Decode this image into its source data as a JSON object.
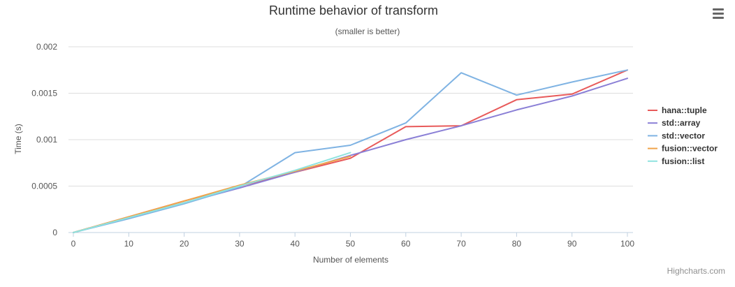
{
  "chart_data": {
    "type": "line",
    "title": "Runtime behavior of transform",
    "subtitle": "(smaller is better)",
    "xlabel": "Number of elements",
    "ylabel": "Time (s)",
    "xlim": [
      0,
      100
    ],
    "ylim": [
      0,
      0.002
    ],
    "x_ticks": [
      0,
      10,
      20,
      30,
      40,
      50,
      60,
      70,
      80,
      90,
      100
    ],
    "y_ticks": [
      {
        "value": 0,
        "label": "0"
      },
      {
        "value": 0.0005,
        "label": "0.0005"
      },
      {
        "value": 0.001,
        "label": "0.001"
      },
      {
        "value": 0.0015,
        "label": "0.0015"
      },
      {
        "value": 0.002,
        "label": "0.002"
      }
    ],
    "grid": true,
    "legend_position": "right",
    "series": [
      {
        "name": "hana::tuple",
        "color": "#e85a5a",
        "points": [
          [
            0,
            0
          ],
          [
            10,
            0.00017
          ],
          [
            20,
            0.00034
          ],
          [
            30,
            0.0005
          ],
          [
            40,
            0.00065
          ],
          [
            50,
            0.0008
          ],
          [
            60,
            0.00114
          ],
          [
            70,
            0.00115
          ],
          [
            80,
            0.00143
          ],
          [
            90,
            0.00149
          ],
          [
            100,
            0.00175
          ]
        ]
      },
      {
        "name": "std::array",
        "color": "#8a7fd6",
        "points": [
          [
            0,
            0
          ],
          [
            10,
            0.00016
          ],
          [
            20,
            0.00032
          ],
          [
            30,
            0.00048
          ],
          [
            40,
            0.00065
          ],
          [
            50,
            0.00083
          ],
          [
            60,
            0.001
          ],
          [
            70,
            0.00115
          ],
          [
            80,
            0.00132
          ],
          [
            90,
            0.00147
          ],
          [
            100,
            0.00166
          ]
        ]
      },
      {
        "name": "std::vector",
        "color": "#7fb3e3",
        "points": [
          [
            0,
            0
          ],
          [
            10,
            0.00015
          ],
          [
            20,
            0.00031
          ],
          [
            30,
            0.00049
          ],
          [
            40,
            0.00086
          ],
          [
            50,
            0.00094
          ],
          [
            60,
            0.00118
          ],
          [
            70,
            0.00172
          ],
          [
            80,
            0.00148
          ],
          [
            90,
            0.00162
          ],
          [
            100,
            0.00175
          ]
        ]
      },
      {
        "name": "fusion::vector",
        "color": "#f0a44a",
        "points": [
          [
            0,
            0
          ],
          [
            10,
            0.00017
          ],
          [
            20,
            0.00034
          ],
          [
            30,
            0.00051
          ],
          [
            40,
            0.00066
          ],
          [
            50,
            0.00082
          ]
        ]
      },
      {
        "name": "fusion::list",
        "color": "#8fe3df",
        "points": [
          [
            0,
            0
          ],
          [
            10,
            0.00016
          ],
          [
            20,
            0.00032
          ],
          [
            30,
            0.0005
          ],
          [
            40,
            0.00067
          ],
          [
            50,
            0.00086
          ]
        ]
      }
    ]
  },
  "credits": "Highcharts.com",
  "menu_icon": "hamburger-menu-icon"
}
